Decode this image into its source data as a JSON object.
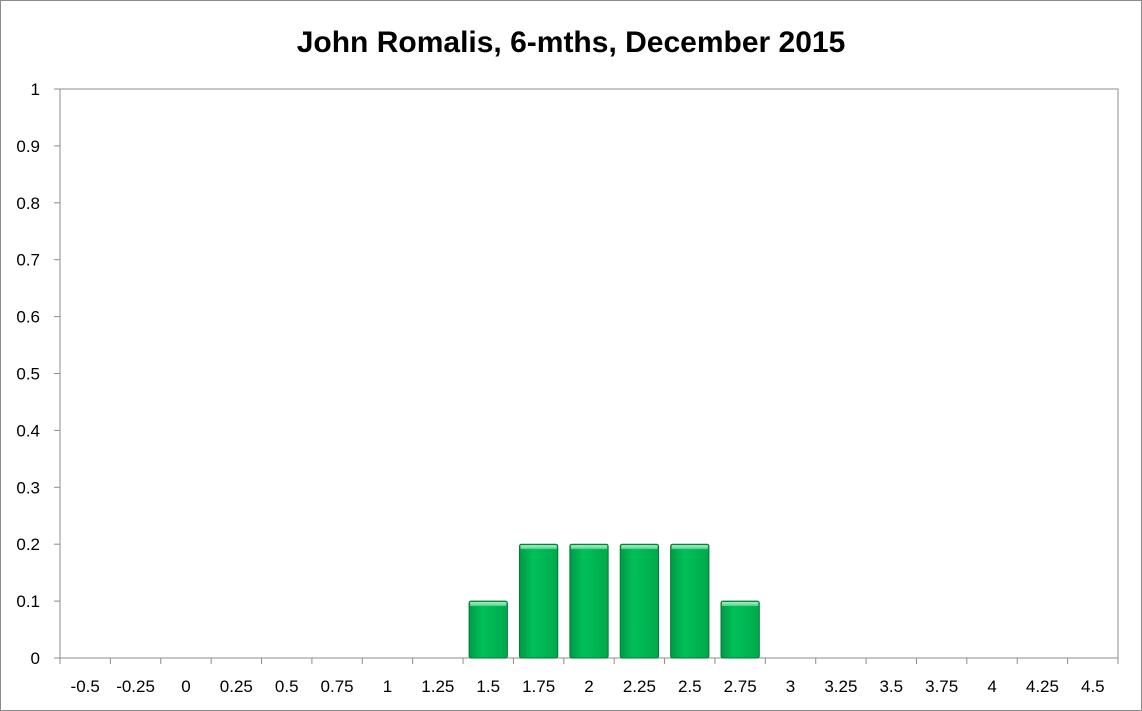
{
  "chart_data": {
    "type": "bar",
    "title": "John Romalis, 6-mths, December 2015",
    "categories": [
      "-0.5",
      "-0.25",
      "0",
      "0.25",
      "0.5",
      "0.75",
      "1",
      "1.25",
      "1.5",
      "1.75",
      "2",
      "2.25",
      "2.5",
      "2.75",
      "3",
      "3.25",
      "3.5",
      "3.75",
      "4",
      "4.25",
      "4.5"
    ],
    "values": [
      0,
      0,
      0,
      0,
      0,
      0,
      0,
      0,
      0.1,
      0.2,
      0.2,
      0.2,
      0.2,
      0.1,
      0,
      0,
      0,
      0,
      0,
      0,
      0
    ],
    "yticks": [
      "0",
      "0.1",
      "0.2",
      "0.3",
      "0.4",
      "0.5",
      "0.6",
      "0.7",
      "0.8",
      "0.9",
      "1"
    ],
    "ylim": [
      0,
      1
    ],
    "xlabel": "",
    "ylabel": "",
    "grid": false,
    "legend": "none",
    "bar_color": "#00b050"
  }
}
